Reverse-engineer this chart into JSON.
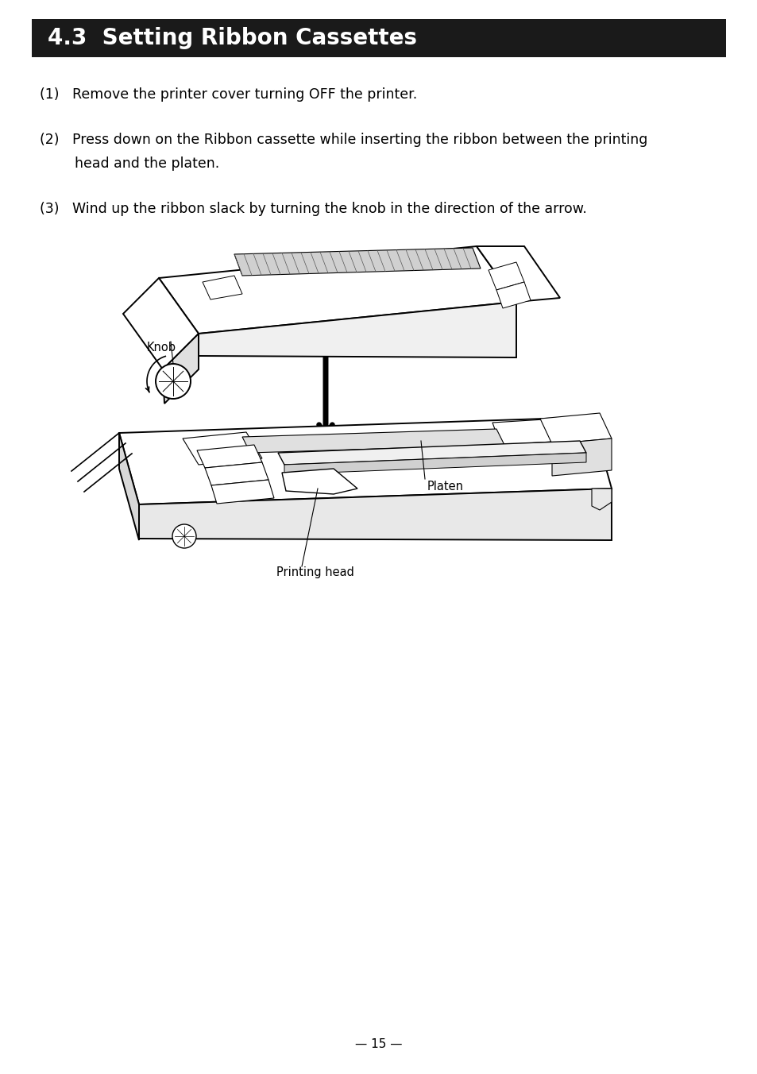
{
  "bg_color": "#ffffff",
  "header_bg": "#1a1a1a",
  "header_text": "4.3  Setting Ribbon Cassettes",
  "header_text_color": "#ffffff",
  "header_fontsize": 20,
  "body_text_color": "#000000",
  "body_fontsize": 12.5,
  "step1_text": "(1)   Remove the printer cover turning OFF the printer.",
  "step2_line1": "(2)   Press down on the Ribbon cassette while inserting the ribbon between the printing",
  "step2_line2": "        head and the platen.",
  "step3_text": "(3)   Wind up the ribbon slack by turning the knob in the direction of the arrow.",
  "label_knob": "Knob",
  "label_platen": "Platen",
  "label_printing_head": "Printing head",
  "label_fontsize": 10.5,
  "page_number": "— 15 —",
  "page_number_fontsize": 11,
  "lw_main": 1.4,
  "lw_thin": 0.8,
  "lw_inner": 0.7
}
